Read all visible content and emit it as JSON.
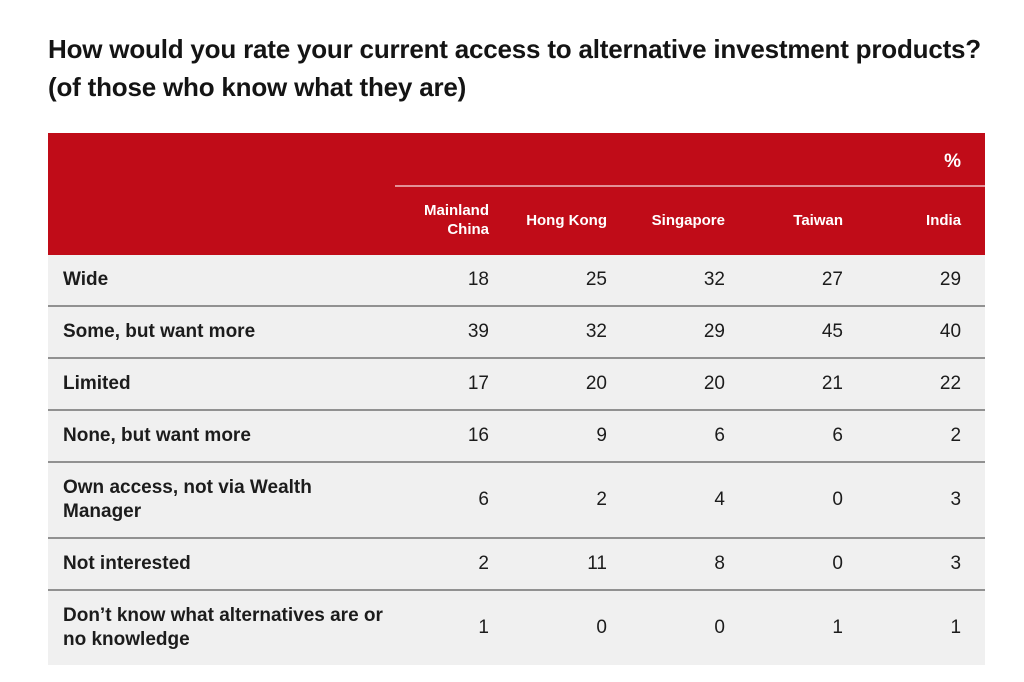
{
  "chart_data": {
    "type": "table",
    "title": "How would you rate your current access to alternative investment products? (of those who know what they are)",
    "unit": "%",
    "columns": [
      "Mainland China",
      "Hong Kong",
      "Singapore",
      "Taiwan",
      "India"
    ],
    "rows": [
      {
        "label": "Wide",
        "values": [
          18,
          25,
          32,
          27,
          29
        ]
      },
      {
        "label": "Some, but want more",
        "values": [
          39,
          32,
          29,
          45,
          40
        ]
      },
      {
        "label": "Limited",
        "values": [
          17,
          20,
          20,
          21,
          22
        ]
      },
      {
        "label": "None, but want more",
        "values": [
          16,
          9,
          6,
          6,
          2
        ]
      },
      {
        "label": "Own access, not via Wealth Manager",
        "values": [
          6,
          2,
          4,
          0,
          3
        ]
      },
      {
        "label": "Not interested",
        "values": [
          2,
          11,
          8,
          0,
          3
        ]
      },
      {
        "label": "Don’t know what alternatives are or no knowledge",
        "values": [
          1,
          0,
          0,
          1,
          1
        ]
      }
    ],
    "layout": {
      "header_bg": "#C00C18",
      "header_text": "#FFFFFF",
      "row_bg": "#F0F0F0",
      "row_divider": "#919191",
      "body_text": "#1C1C1C",
      "value_alignment": "right"
    }
  }
}
